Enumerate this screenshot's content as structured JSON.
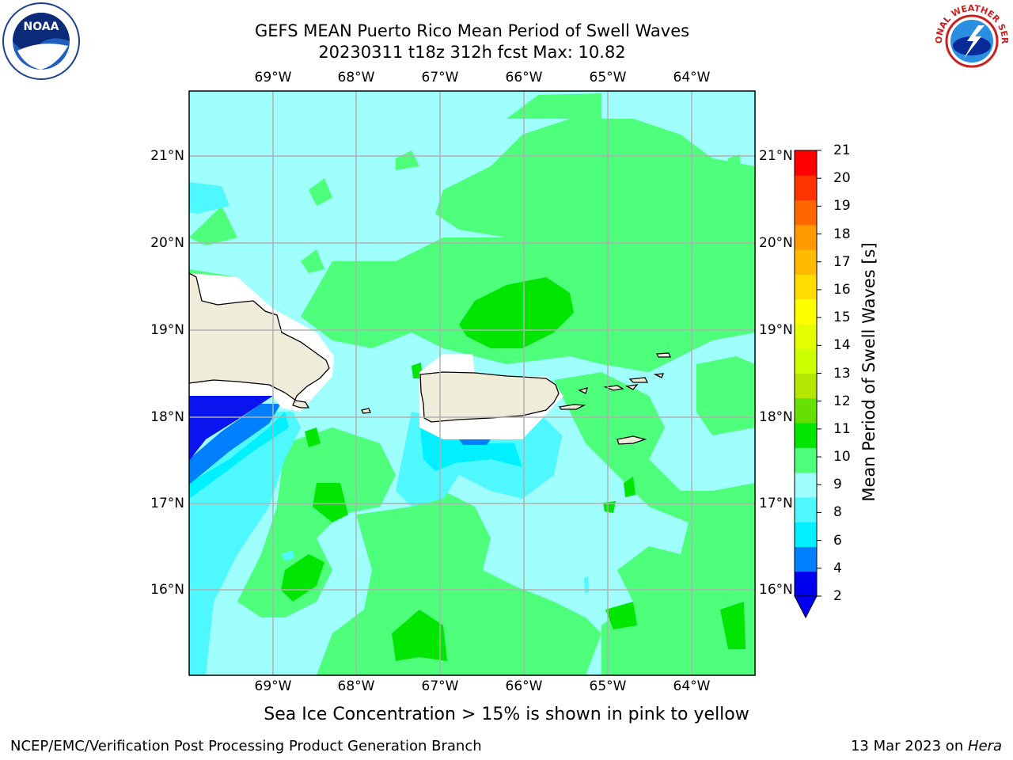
{
  "header": {
    "title_line1": "GEFS MEAN Puerto Rico Mean Period of Swell Waves",
    "title_line2": "20230311 t18z 312h fcst   Max: 10.82"
  },
  "logos": {
    "left": {
      "icon": "noaa-logo-icon",
      "text": "NOAA"
    },
    "right": {
      "icon": "nws-logo-icon",
      "text": "NATIONAL WEATHER SERVICE"
    }
  },
  "map": {
    "lon_labels": [
      "69°W",
      "68°W",
      "67°W",
      "66°W",
      "65°W",
      "64°W"
    ],
    "lat_labels": [
      "21°N",
      "20°N",
      "19°N",
      "18°N",
      "17°N",
      "16°N"
    ],
    "colors": {
      "land": "#efedda",
      "coast": "#000000",
      "grid": "#b0b0b0",
      "v2_4": "#0a14ee",
      "v4_6": "#0080ff",
      "v6_8": "#00f0ff",
      "v8_9": "#4ff8ff",
      "v9_10": "#9ffffd",
      "v10_11": "#4dff7a",
      "v11_12": "#00e600"
    }
  },
  "colorbar": {
    "title": "Mean Period of Swell Waves [s]",
    "ticks": [
      "21",
      "20",
      "19",
      "18",
      "17",
      "16",
      "15",
      "14",
      "13",
      "12",
      "11",
      "10",
      "9",
      "8",
      "6",
      "4",
      "2"
    ],
    "colors": [
      "#0000ee",
      "#0080ff",
      "#00f0ff",
      "#4ff8ff",
      "#9ffffd",
      "#4dff7a",
      "#00e600",
      "#66e000",
      "#b3e600",
      "#ccff00",
      "#e6ff00",
      "#ffff00",
      "#ffdd00",
      "#ffbb00",
      "#ff9900",
      "#ff6600",
      "#ff3300",
      "#ff0000"
    ]
  },
  "footer": {
    "note": "Sea Ice Concentration > 15% is shown in pink to yellow",
    "credit": "NCEP/EMC/Verification Post Processing Product Generation Branch",
    "date": "13 Mar 2023 on ",
    "machine": "Hera"
  }
}
